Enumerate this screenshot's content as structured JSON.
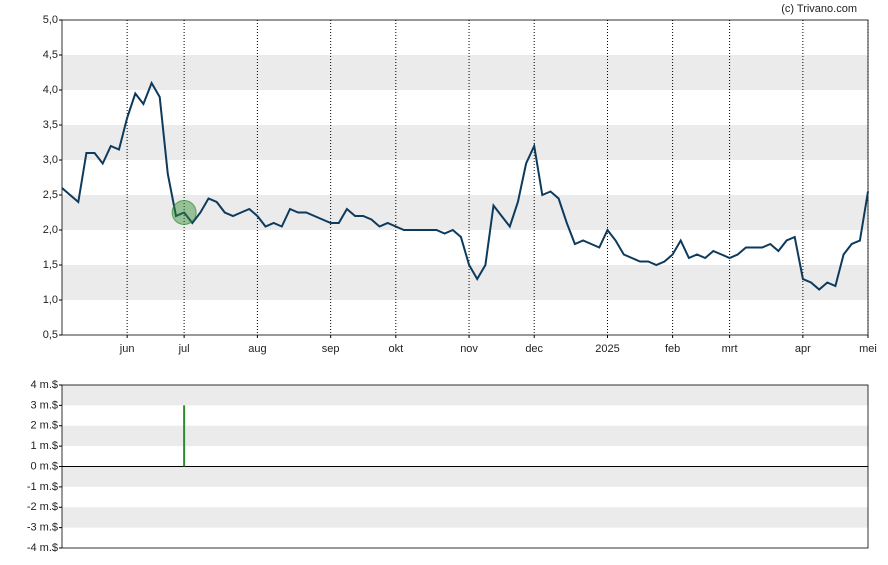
{
  "credit": "(c) Trivano.com",
  "chart_data": [
    {
      "type": "line",
      "series": [
        {
          "color": "#0e3a5c",
          "values": [
            2.6,
            2.5,
            2.4,
            3.1,
            3.1,
            2.95,
            3.2,
            3.15,
            3.6,
            3.95,
            3.8,
            4.1,
            3.9,
            2.8,
            2.2,
            2.25,
            2.1,
            2.25,
            2.45,
            2.4,
            2.25,
            2.2,
            2.25,
            2.3,
            2.2,
            2.05,
            2.1,
            2.05,
            2.3,
            2.25,
            2.25,
            2.2,
            2.15,
            2.1,
            2.1,
            2.3,
            2.2,
            2.2,
            2.15,
            2.05,
            2.1,
            2.05,
            2.0,
            2.0,
            2.0,
            2.0,
            2.0,
            1.95,
            2.0,
            1.9,
            1.5,
            1.3,
            1.5,
            2.35,
            2.2,
            2.05,
            2.4,
            2.95,
            3.2,
            2.5,
            2.55,
            2.45,
            2.1,
            1.8,
            1.85,
            1.8,
            1.75,
            2.0,
            1.85,
            1.65,
            1.6,
            1.55,
            1.55,
            1.5,
            1.55,
            1.65,
            1.85,
            1.6,
            1.65,
            1.6,
            1.7,
            1.65,
            1.6,
            1.65,
            1.75,
            1.75,
            1.75,
            1.8,
            1.7,
            1.85,
            1.9,
            1.3,
            1.25,
            1.15,
            1.25,
            1.2,
            1.65,
            1.8,
            1.85,
            2.55
          ]
        }
      ],
      "xlim": [
        0,
        99
      ],
      "xticks": [
        {
          "value": 8,
          "label": "jun"
        },
        {
          "value": 15,
          "label": "jul"
        },
        {
          "value": 24,
          "label": "aug"
        },
        {
          "value": 33,
          "label": "sep"
        },
        {
          "value": 41,
          "label": "okt"
        },
        {
          "value": 50,
          "label": "nov"
        },
        {
          "value": 58,
          "label": "dec"
        },
        {
          "value": 67,
          "label": "2025"
        },
        {
          "value": 75,
          "label": "feb"
        },
        {
          "value": 82,
          "label": "mrt"
        },
        {
          "value": 91,
          "label": "apr"
        },
        {
          "value": 99,
          "label": "mei"
        }
      ],
      "ylim": [
        0.5,
        5.0
      ],
      "yticks": [
        {
          "value": 0.5,
          "label": "0,5"
        },
        {
          "value": 1.0,
          "label": "1,0"
        },
        {
          "value": 1.5,
          "label": "1,5"
        },
        {
          "value": 2.0,
          "label": "2,0"
        },
        {
          "value": 2.5,
          "label": "2,5"
        },
        {
          "value": 3.0,
          "label": "3,0"
        },
        {
          "value": 3.5,
          "label": "3,5"
        },
        {
          "value": 4.0,
          "label": "4,0"
        },
        {
          "value": 4.5,
          "label": "4,5"
        },
        {
          "value": 5.0,
          "label": "5,0"
        }
      ],
      "grid": true
    },
    {
      "type": "bar",
      "x": [
        15
      ],
      "values": [
        3
      ],
      "color": "#2e8b2e",
      "xlim": [
        0,
        99
      ],
      "ylim": [
        -4,
        4
      ],
      "yticks": [
        {
          "value": 4,
          "label": "4 m.$"
        },
        {
          "value": 3,
          "label": "3 m.$"
        },
        {
          "value": 2,
          "label": "2 m.$"
        },
        {
          "value": 1,
          "label": "1 m.$"
        },
        {
          "value": 0,
          "label": "0 m.$"
        },
        {
          "value": -1,
          "label": "-1 m.$"
        },
        {
          "value": -2,
          "label": "-2 m.$"
        },
        {
          "value": -3,
          "label": "-3 m.$"
        },
        {
          "value": -4,
          "label": "-4 m.$"
        }
      ]
    }
  ]
}
